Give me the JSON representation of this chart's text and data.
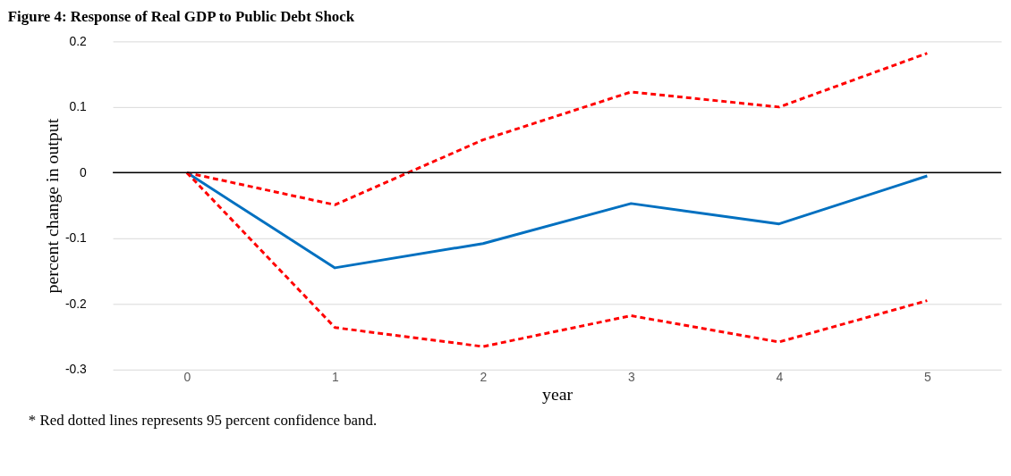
{
  "chart_data": {
    "type": "line",
    "title": "Figure 4: Response of Real GDP to Public Debt Shock",
    "xlabel": "year",
    "ylabel": "percent change in output",
    "categories": [
      "0",
      "1",
      "2",
      "3",
      "4",
      "5"
    ],
    "series": [
      {
        "color": "#ff0000",
        "line_style": "dashed",
        "values": [
          0,
          -0.049,
          0.05,
          0.123,
          0.1,
          0.182
        ]
      },
      {
        "color": "#0070c0",
        "line_style": "solid",
        "values": [
          0,
          -0.145,
          -0.108,
          -0.047,
          -0.078,
          -0.005
        ]
      },
      {
        "color": "#ff0000",
        "line_style": "dashed",
        "values": [
          0,
          -0.236,
          -0.265,
          -0.218,
          -0.258,
          -0.195
        ]
      }
    ],
    "ylim": [
      -0.3,
      0.2
    ],
    "yticks": [
      -0.3,
      -0.2,
      -0.1,
      0,
      0.1,
      0.2
    ],
    "grid": "y",
    "legend": false,
    "marker": "none",
    "ref_lines": [
      {
        "axis": "y",
        "value": 0,
        "color": "#000000"
      }
    ],
    "annotations": [
      "* Red dotted lines represents 95 percent confidence band."
    ]
  }
}
